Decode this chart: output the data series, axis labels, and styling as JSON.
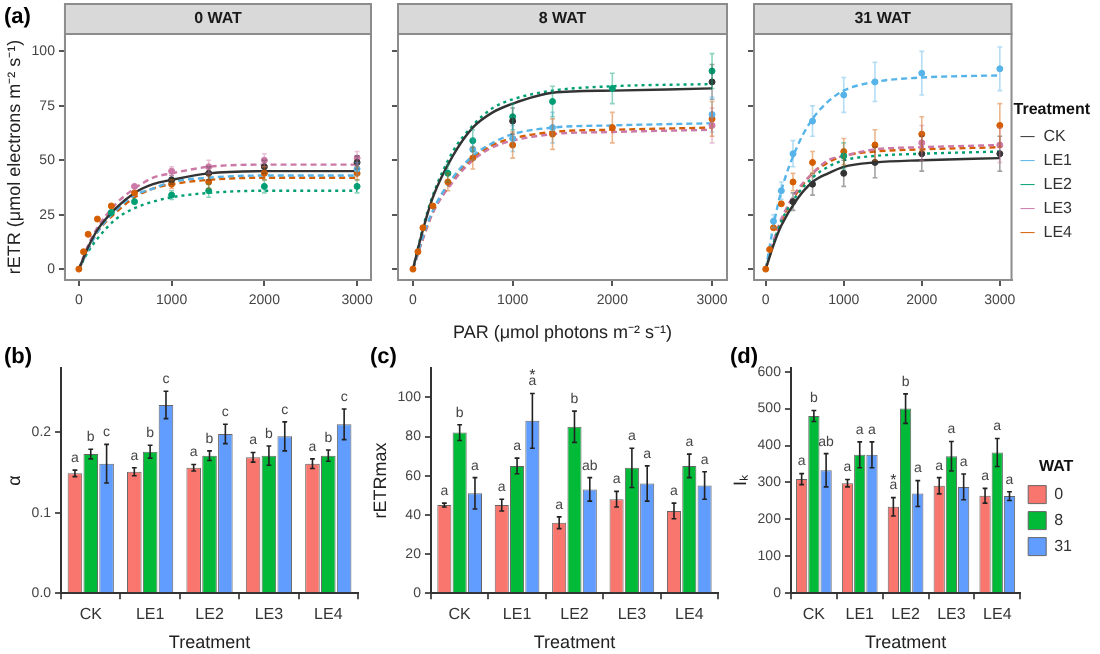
{
  "chart_data": [
    {
      "type": "scatter",
      "title": "0 WAT",
      "ylabel": "rETR (μmol electrons m⁻² s⁻¹)",
      "annotations": [
        "(a)"
      ],
      "xlim": [
        -150,
        3150
      ],
      "ylim": [
        -5,
        108
      ],
      "xticks": [
        0,
        1000,
        2000,
        3000
      ],
      "yticks": [
        0,
        25,
        50,
        75,
        100
      ],
      "marker": "circle",
      "series": [
        {
          "type": "scatter",
          "color": "#333333",
          "x": [
            1000,
            1400,
            2000,
            3000
          ],
          "values": [
            41,
            44,
            47,
            49
          ],
          "errors": [
            2,
            3,
            3,
            3
          ]
        },
        {
          "type": "scatter",
          "color": "#56b4e9",
          "x": [
            3000
          ],
          "values": [
            46
          ],
          "errors": [
            3
          ]
        },
        {
          "type": "scatter",
          "color": "#009e73",
          "x": [
            350,
            600,
            1000,
            1400,
            2000,
            3000
          ],
          "values": [
            26,
            31,
            34,
            36,
            38,
            38
          ],
          "errors": [
            null,
            null,
            2,
            3,
            3,
            3
          ]
        },
        {
          "type": "scatter",
          "color": "#cc79a7",
          "x": [
            600,
            1000,
            1400,
            2000,
            3000
          ],
          "values": [
            38,
            45,
            47,
            50,
            51
          ],
          "errors": [
            null,
            2,
            3,
            3,
            3
          ]
        },
        {
          "type": "scatter",
          "color": "#d55e00",
          "x": [
            0,
            50,
            100,
            200,
            350,
            600,
            1000,
            1400,
            2000,
            3000
          ],
          "values": [
            0,
            8,
            16,
            23,
            29,
            35,
            39,
            40,
            44,
            44
          ],
          "errors": [
            null,
            null,
            null,
            null,
            null,
            null,
            2,
            3,
            3,
            3
          ]
        },
        {
          "type": "line",
          "color": "#333333",
          "line_style": "solid",
          "marker": "none",
          "x": [
            0,
            100,
            200,
            400,
            600,
            800,
            1000,
            1400,
            2000,
            3000
          ],
          "values": [
            0,
            10,
            18,
            28,
            35,
            39,
            41,
            44,
            45,
            45
          ]
        },
        {
          "type": "line",
          "color": "#56b4e9",
          "line_style": "dashed",
          "marker": "none",
          "x": [
            0,
            100,
            200,
            400,
            600,
            800,
            1000,
            1400,
            2000,
            3000
          ],
          "values": [
            0,
            9,
            17,
            27,
            34,
            37,
            40,
            42,
            43,
            43
          ]
        },
        {
          "type": "line",
          "color": "#009e73",
          "line_style": "dotted",
          "marker": "none",
          "x": [
            0,
            100,
            200,
            400,
            600,
            800,
            1000,
            1400,
            2000,
            3000
          ],
          "values": [
            0,
            8,
            14,
            23,
            28,
            31,
            33,
            35,
            36,
            36
          ]
        },
        {
          "type": "line",
          "color": "#cc79a7",
          "line_style": "dashed",
          "marker": "none",
          "x": [
            0,
            100,
            200,
            400,
            600,
            800,
            1000,
            1400,
            2000,
            3000
          ],
          "values": [
            0,
            11,
            19,
            30,
            37,
            42,
            44,
            47,
            48,
            48
          ]
        },
        {
          "type": "line",
          "color": "#d55e00",
          "line_style": "dashed",
          "marker": "none",
          "x": [
            0,
            100,
            200,
            400,
            600,
            800,
            1000,
            1400,
            2000,
            3000
          ],
          "values": [
            0,
            9,
            17,
            26,
            33,
            37,
            39,
            41,
            42,
            42
          ]
        }
      ]
    },
    {
      "type": "scatter",
      "title": "8 WAT",
      "xlabel": "PAR (μmol photons m⁻² s⁻¹)",
      "xlim": [
        -150,
        3150
      ],
      "ylim": [
        -5,
        108
      ],
      "xticks": [
        0,
        1000,
        2000,
        3000
      ],
      "yticks": [
        0,
        25,
        50,
        75,
        100
      ],
      "tick_labels": "x",
      "marker": "circle",
      "series": [
        {
          "type": "scatter",
          "color": "#333333",
          "x": [
            1000,
            3000
          ],
          "values": [
            68,
            86
          ],
          "errors": [
            6,
            8
          ]
        },
        {
          "type": "scatter",
          "color": "#56b4e9",
          "x": [
            600,
            1000,
            1400,
            3000
          ],
          "values": [
            55,
            60,
            65,
            71
          ],
          "errors": [
            5,
            6,
            7,
            8
          ]
        },
        {
          "type": "scatter",
          "color": "#009e73",
          "x": [
            350,
            600,
            1000,
            1400,
            2000,
            3000
          ],
          "values": [
            44,
            59,
            70,
            77,
            83,
            91
          ],
          "errors": [
            4,
            5,
            6,
            7,
            7,
            8
          ]
        },
        {
          "type": "scatter",
          "color": "#cc79a7",
          "x": [
            3000
          ],
          "values": [
            66
          ],
          "errors": [
            8
          ]
        },
        {
          "type": "scatter",
          "color": "#d55e00",
          "x": [
            0,
            50,
            100,
            200,
            350,
            600,
            1000,
            1400,
            2000,
            3000
          ],
          "values": [
            0,
            8,
            19,
            29,
            40,
            51,
            57,
            62,
            65,
            69
          ],
          "errors": [
            null,
            null,
            null,
            null,
            4,
            5,
            6,
            7,
            7,
            8
          ]
        },
        {
          "type": "line",
          "color": "#333333",
          "line_style": "solid",
          "marker": "none",
          "x": [
            0,
            100,
            200,
            400,
            600,
            800,
            1000,
            1400,
            2000,
            3000
          ],
          "values": [
            0,
            18,
            33,
            52,
            65,
            72,
            76,
            81,
            82,
            83
          ]
        },
        {
          "type": "line",
          "color": "#56b4e9",
          "line_style": "dashed",
          "marker": "none",
          "x": [
            0,
            100,
            200,
            400,
            600,
            800,
            1000,
            1400,
            2000,
            3000
          ],
          "values": [
            0,
            15,
            27,
            42,
            52,
            58,
            62,
            65,
            66,
            67
          ]
        },
        {
          "type": "line",
          "color": "#009e73",
          "line_style": "dotted",
          "marker": "none",
          "x": [
            0,
            100,
            200,
            400,
            600,
            800,
            1000,
            1400,
            2000,
            3000
          ],
          "values": [
            0,
            19,
            34,
            54,
            66,
            74,
            78,
            82,
            84,
            85
          ]
        },
        {
          "type": "line",
          "color": "#cc79a7",
          "line_style": "dashed",
          "marker": "none",
          "x": [
            0,
            100,
            200,
            400,
            600,
            800,
            1000,
            1400,
            2000,
            3000
          ],
          "values": [
            0,
            14,
            26,
            40,
            50,
            56,
            59,
            62,
            63,
            64
          ]
        },
        {
          "type": "line",
          "color": "#d55e00",
          "line_style": "dashed",
          "marker": "none",
          "x": [
            0,
            100,
            200,
            400,
            600,
            800,
            1000,
            1400,
            2000,
            3000
          ],
          "values": [
            0,
            14,
            26,
            41,
            51,
            57,
            60,
            63,
            64,
            65
          ]
        }
      ]
    },
    {
      "type": "scatter",
      "title": "31 WAT",
      "legend": "right",
      "legend_title": "Treatment",
      "xlim": [
        -150,
        3150
      ],
      "ylim": [
        -5,
        108
      ],
      "xticks": [
        0,
        1000,
        2000,
        3000
      ],
      "yticks": [
        0,
        25,
        50,
        75,
        100
      ],
      "tick_labels": "x",
      "marker": "circle",
      "series": [
        {
          "name": "CK",
          "type": "scatter",
          "color": "#333333",
          "x": [
            350,
            600,
            1000,
            1400,
            2000,
            3000
          ],
          "values": [
            31,
            39,
            44,
            49,
            53,
            53
          ],
          "errors": [
            4,
            5,
            6,
            7,
            8,
            8
          ]
        },
        {
          "name": "LE1",
          "type": "scatter",
          "color": "#56b4e9",
          "x": [
            100,
            200,
            350,
            600,
            1000,
            1400,
            2000,
            3000
          ],
          "values": [
            22,
            36,
            53,
            68,
            80,
            86,
            90,
            92
          ],
          "errors": [
            3,
            4,
            6,
            7,
            8,
            9,
            10,
            10
          ]
        },
        {
          "name": "LE2",
          "type": "scatter",
          "color": "#009e73",
          "x": [
            1000
          ],
          "values": [
            52
          ],
          "errors": [
            6
          ]
        },
        {
          "name": "LE3",
          "type": "scatter",
          "color": "#cc79a7",
          "x": [
            2000,
            3000
          ],
          "values": [
            58,
            57
          ],
          "errors": [
            8,
            8
          ]
        },
        {
          "name": "LE4",
          "type": "scatter",
          "color": "#d55e00",
          "x": [
            0,
            50,
            100,
            200,
            350,
            600,
            1000,
            1400,
            2000,
            3000
          ],
          "values": [
            0,
            9,
            19,
            30,
            40,
            49,
            54,
            57,
            62,
            66
          ],
          "errors": [
            null,
            null,
            null,
            null,
            4,
            5,
            6,
            7,
            8,
            10
          ]
        },
        {
          "type": "line",
          "color": "#333333",
          "line_style": "solid",
          "marker": "none",
          "x": [
            0,
            100,
            200,
            400,
            600,
            800,
            1000,
            1400,
            2000,
            3000
          ],
          "values": [
            0,
            11,
            20,
            32,
            40,
            44,
            47,
            49,
            50,
            51
          ]
        },
        {
          "type": "line",
          "color": "#56b4e9",
          "line_style": "dashed",
          "marker": "none",
          "x": [
            0,
            100,
            200,
            400,
            600,
            800,
            1000,
            1400,
            2000,
            3000
          ],
          "values": [
            0,
            20,
            36,
            56,
            69,
            77,
            82,
            86,
            88,
            89
          ]
        },
        {
          "type": "line",
          "color": "#009e73",
          "line_style": "dotted",
          "marker": "none",
          "x": [
            0,
            100,
            200,
            400,
            600,
            800,
            1000,
            1400,
            2000,
            3000
          ],
          "values": [
            0,
            12,
            22,
            34,
            42,
            47,
            50,
            52,
            53,
            54
          ]
        },
        {
          "type": "line",
          "color": "#cc79a7",
          "line_style": "dashed",
          "marker": "none",
          "x": [
            0,
            100,
            200,
            400,
            600,
            800,
            1000,
            1400,
            2000,
            3000
          ],
          "values": [
            0,
            13,
            23,
            36,
            44,
            50,
            52,
            55,
            56,
            57
          ]
        },
        {
          "type": "line",
          "color": "#d55e00",
          "line_style": "dashed",
          "marker": "none",
          "x": [
            0,
            100,
            200,
            400,
            600,
            800,
            1000,
            1400,
            2000,
            3000
          ],
          "values": [
            0,
            12,
            22,
            35,
            44,
            49,
            52,
            54,
            55,
            56
          ]
        }
      ]
    },
    {
      "type": "bar",
      "annotations": [
        "(b)"
      ],
      "xlabel": "Treatment",
      "ylabel": "α",
      "categories": [
        "CK",
        "LE1",
        "LE2",
        "LE3",
        "LE4"
      ],
      "ylim": [
        0,
        0.28
      ],
      "yticks": [
        {
          "value": 0,
          "label": "0.0"
        },
        0.1,
        0.2
      ],
      "series": [
        {
          "color": "#f8766d",
          "values": [
            0.149,
            0.151,
            0.156,
            0.169,
            0.161
          ],
          "errors": [
            0.004,
            0.005,
            0.004,
            0.006,
            0.006
          ],
          "value_labels": [
            "a",
            "a",
            "a",
            "a",
            "a"
          ]
        },
        {
          "color": "#00ba38",
          "values": [
            0.173,
            0.176,
            0.171,
            0.171,
            0.171
          ],
          "errors": [
            0.006,
            0.008,
            0.006,
            0.012,
            0.007
          ],
          "value_labels": [
            "b",
            "b",
            "b",
            "b",
            "b"
          ]
        },
        {
          "color": "#619cff",
          "values": [
            0.161,
            0.234,
            0.198,
            0.195,
            0.21
          ],
          "errors": [
            0.024,
            0.017,
            0.012,
            0.018,
            0.019
          ],
          "value_labels": [
            "c",
            "c",
            "c",
            "c",
            "c"
          ]
        }
      ]
    },
    {
      "type": "bar",
      "annotations": [
        "(c)",
        {
          "text": "*",
          "x": "LE1",
          "y": 88
        }
      ],
      "xlabel": "Treatment",
      "ylabel": "rETRmax",
      "categories": [
        "CK",
        "LE1",
        "LE2",
        "LE3",
        "LE4"
      ],
      "ylim": [
        0,
        115
      ],
      "yticks": [
        0,
        20,
        40,
        60,
        80,
        100
      ],
      "series": [
        {
          "color": "#f8766d",
          "values": [
            45,
            45,
            36,
            48,
            42
          ],
          "errors": [
            1,
            3,
            3,
            4,
            4
          ],
          "value_labels": [
            "a",
            "a",
            "a",
            "a",
            "a"
          ]
        },
        {
          "color": "#00ba38",
          "values": [
            82,
            65,
            85,
            64,
            65
          ],
          "errors": [
            4,
            4,
            8,
            10,
            6
          ],
          "value_labels": [
            "b",
            "a",
            "b",
            "a",
            "a"
          ]
        },
        {
          "color": "#619cff",
          "values": [
            51,
            88,
            53,
            56,
            55
          ],
          "errors": [
            8,
            14,
            6,
            9,
            7
          ],
          "value_labels": [
            "a",
            "a",
            "ab",
            "a",
            "a"
          ]
        }
      ]
    },
    {
      "type": "bar",
      "annotations": [
        "(d)",
        {
          "text": "*",
          "x": "LE2",
          "y": 234
        }
      ],
      "xlabel": "Treatment",
      "ylabel": "Iₖ",
      "legend": "right",
      "legend_title": "WAT",
      "categories": [
        "CK",
        "LE1",
        "LE2",
        "LE3",
        "LE4"
      ],
      "ylim": [
        0,
        610
      ],
      "yticks": [
        0,
        100,
        200,
        300,
        400,
        500,
        600
      ],
      "series": [
        {
          "name": "0",
          "color": "#f8766d",
          "values": [
            309,
            298,
            234,
            291,
            264
          ],
          "errors": [
            15,
            10,
            25,
            22,
            20
          ],
          "value_labels": [
            "a",
            "a",
            "a",
            "a",
            "a"
          ]
        },
        {
          "name": "8",
          "color": "#00ba38",
          "values": [
            480,
            375,
            500,
            371,
            381
          ],
          "errors": [
            15,
            35,
            40,
            40,
            38
          ],
          "value_labels": [
            "b",
            "a",
            "b",
            "a",
            "a"
          ]
        },
        {
          "name": "31",
          "color": "#619cff",
          "values": [
            333,
            375,
            270,
            288,
            263
          ],
          "errors": [
            45,
            35,
            35,
            35,
            12
          ],
          "value_labels": [
            "ab",
            "a",
            "a",
            "a",
            "a"
          ]
        }
      ]
    }
  ]
}
